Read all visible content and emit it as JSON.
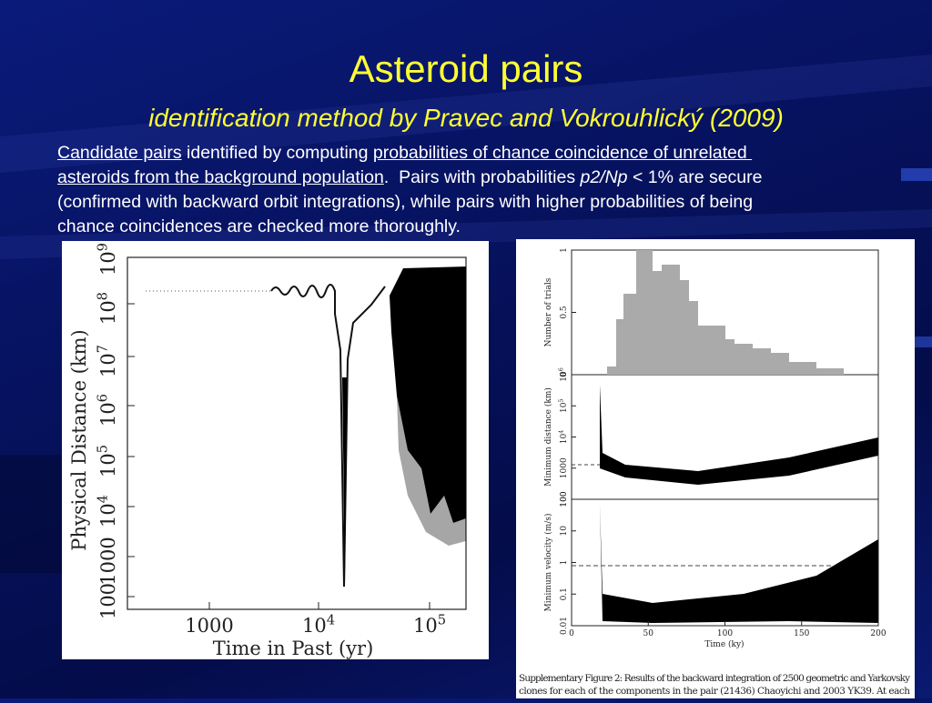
{
  "title": "Asteroid pairs",
  "subtitle": "identification method by Pravec and Vokrouhlický (2009)",
  "body": [
    [
      {
        "text": "Candidate pairs",
        "style": "underline"
      },
      {
        "text": " identified by computing "
      },
      {
        "text": "probabilities of chance coincidence of unrelated ",
        "style": "underline"
      }
    ],
    [
      {
        "text": "asteroids from the background population",
        "style": "underline"
      },
      {
        "text": ".  Pairs with probabilities "
      },
      {
        "text": "p2/Np",
        "style": "italic"
      },
      {
        "text": " < 1% are secure"
      }
    ],
    [
      {
        "text": "(confirmed with backward orbit integrations), while pairs with higher probabilities of being"
      }
    ],
    [
      {
        "text": "chance coincidences are checked more thoroughly."
      }
    ]
  ],
  "figure_left": {
    "y_label": "Physical Distance (km)",
    "x_label": "Time in Past (yr)",
    "y_ticks": [
      "100",
      "1000",
      {
        "base": "10",
        "exp": "4"
      },
      {
        "base": "10",
        "exp": "5"
      },
      {
        "base": "10",
        "exp": "6"
      },
      {
        "base": "10",
        "exp": "7"
      },
      {
        "base": "10",
        "exp": "8"
      },
      {
        "base": "10",
        "exp": "9"
      }
    ],
    "x_ticks": [
      "1000",
      {
        "base": "10",
        "exp": "4"
      },
      {
        "base": "10",
        "exp": "5"
      }
    ]
  },
  "figure_right": {
    "panels": [
      {
        "y_label": "Number of trials",
        "y_ticks": [
          "0",
          "0.5",
          "1"
        ]
      },
      {
        "y_label": "Minimum distance (km)",
        "y_ticks": [
          "100",
          "1000",
          {
            "base": "10",
            "exp": "4"
          },
          {
            "base": "10",
            "exp": "5"
          },
          {
            "base": "10",
            "exp": "6"
          }
        ]
      },
      {
        "y_label": "Minimum velocity (m/s)",
        "y_ticks": [
          "0.01",
          "0.1",
          "1",
          "10",
          "100"
        ]
      }
    ],
    "x_ticks": [
      "0",
      "50",
      "100",
      "150",
      "200"
    ],
    "x_label": "Time (ky)",
    "caption": [
      "Supplementary Figure 2: Results of the backward integration of 2500 geometric and Yarkovsky",
      "clones for each of the components in the pair (21436) Chaoyichi and 2003 YK39.  At each"
    ]
  }
}
